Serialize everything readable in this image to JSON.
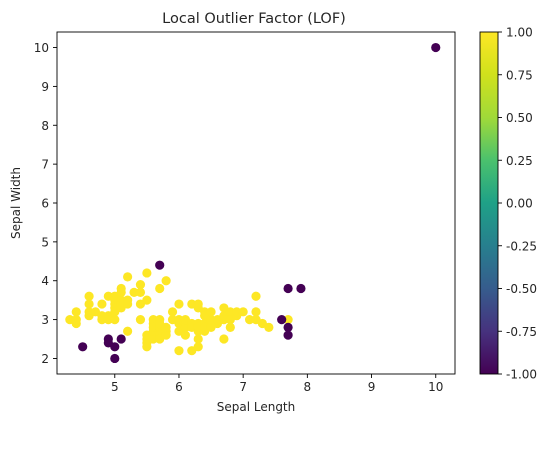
{
  "chart_data": {
    "type": "scatter",
    "title": "Local Outlier Factor (LOF)",
    "xlabel": "Sepal Length",
    "ylabel": "Sepal Width",
    "xlim": [
      4.1,
      10.3
    ],
    "ylim": [
      1.6,
      10.4
    ],
    "xticks": [
      "5",
      "6",
      "7",
      "8",
      "9",
      "10"
    ],
    "yticks": [
      "2",
      "3",
      "4",
      "5",
      "6",
      "7",
      "8",
      "9",
      "10"
    ],
    "grid": false,
    "legend": "none",
    "colorbar": {
      "colormap": "viridis",
      "range": [
        -1,
        1
      ],
      "ticks": [
        "-1.00",
        "-0.75",
        "-0.50",
        "-0.25",
        "0.00",
        "0.25",
        "0.50",
        "0.75",
        "1.00"
      ]
    },
    "colors": {
      "inlier": "#fde725",
      "outlier": "#440154"
    },
    "inliers": [
      [
        4.3,
        3.0
      ],
      [
        4.4,
        3.2
      ],
      [
        4.4,
        3.0
      ],
      [
        4.4,
        2.9
      ],
      [
        4.6,
        3.6
      ],
      [
        4.6,
        3.4
      ],
      [
        4.6,
        3.2
      ],
      [
        4.6,
        3.1
      ],
      [
        4.7,
        3.2
      ],
      [
        4.8,
        3.4
      ],
      [
        4.8,
        3.1
      ],
      [
        4.8,
        3.0
      ],
      [
        4.9,
        3.1
      ],
      [
        4.9,
        3.0
      ],
      [
        4.9,
        3.6
      ],
      [
        5.0,
        3.6
      ],
      [
        5.0,
        3.4
      ],
      [
        5.0,
        3.5
      ],
      [
        5.0,
        3.3
      ],
      [
        5.0,
        3.0
      ],
      [
        5.0,
        3.2
      ],
      [
        5.1,
        3.5
      ],
      [
        5.1,
        3.8
      ],
      [
        5.1,
        3.7
      ],
      [
        5.1,
        3.3
      ],
      [
        5.1,
        3.4
      ],
      [
        5.2,
        3.5
      ],
      [
        5.2,
        3.4
      ],
      [
        5.2,
        4.1
      ],
      [
        5.2,
        2.7
      ],
      [
        5.3,
        3.7
      ],
      [
        5.4,
        3.9
      ],
      [
        5.4,
        3.7
      ],
      [
        5.4,
        3.4
      ],
      [
        5.4,
        3.0
      ],
      [
        5.5,
        4.2
      ],
      [
        5.5,
        3.5
      ],
      [
        5.5,
        2.3
      ],
      [
        5.5,
        2.4
      ],
      [
        5.5,
        2.5
      ],
      [
        5.5,
        2.6
      ],
      [
        5.6,
        2.9
      ],
      [
        5.6,
        3.0
      ],
      [
        5.6,
        2.5
      ],
      [
        5.6,
        2.7
      ],
      [
        5.6,
        2.8
      ],
      [
        5.7,
        3.8
      ],
      [
        5.7,
        2.8
      ],
      [
        5.7,
        2.6
      ],
      [
        5.7,
        3.0
      ],
      [
        5.7,
        2.9
      ],
      [
        5.7,
        2.5
      ],
      [
        5.8,
        4.0
      ],
      [
        5.8,
        2.7
      ],
      [
        5.8,
        2.6
      ],
      [
        5.8,
        2.8
      ],
      [
        5.9,
        3.0
      ],
      [
        5.9,
        3.2
      ],
      [
        6.0,
        2.2
      ],
      [
        6.0,
        2.9
      ],
      [
        6.0,
        2.7
      ],
      [
        6.0,
        3.0
      ],
      [
        6.0,
        3.4
      ],
      [
        6.1,
        2.9
      ],
      [
        6.1,
        2.8
      ],
      [
        6.1,
        3.0
      ],
      [
        6.1,
        2.6
      ],
      [
        6.2,
        2.2
      ],
      [
        6.2,
        2.9
      ],
      [
        6.2,
        2.8
      ],
      [
        6.2,
        3.4
      ],
      [
        6.3,
        3.3
      ],
      [
        6.3,
        2.5
      ],
      [
        6.3,
        2.3
      ],
      [
        6.3,
        2.7
      ],
      [
        6.3,
        2.9
      ],
      [
        6.3,
        2.8
      ],
      [
        6.3,
        3.4
      ],
      [
        6.4,
        3.2
      ],
      [
        6.4,
        2.9
      ],
      [
        6.4,
        2.7
      ],
      [
        6.4,
        2.8
      ],
      [
        6.4,
        3.1
      ],
      [
        6.5,
        2.8
      ],
      [
        6.5,
        3.0
      ],
      [
        6.5,
        3.2
      ],
      [
        6.6,
        2.9
      ],
      [
        6.6,
        3.0
      ],
      [
        6.7,
        3.1
      ],
      [
        6.7,
        3.0
      ],
      [
        6.7,
        2.5
      ],
      [
        6.7,
        3.3
      ],
      [
        6.8,
        2.8
      ],
      [
        6.8,
        3.2
      ],
      [
        6.8,
        3.0
      ],
      [
        6.9,
        3.1
      ],
      [
        6.9,
        3.2
      ],
      [
        7.0,
        3.2
      ],
      [
        7.1,
        3.0
      ],
      [
        7.2,
        3.6
      ],
      [
        7.2,
        3.2
      ],
      [
        7.2,
        3.0
      ],
      [
        7.3,
        2.9
      ],
      [
        7.4,
        2.8
      ],
      [
        7.7,
        3.0
      ]
    ],
    "outliers": [
      [
        4.5,
        2.3
      ],
      [
        4.9,
        2.5
      ],
      [
        4.9,
        2.4
      ],
      [
        5.0,
        2.3
      ],
      [
        5.0,
        2.0
      ],
      [
        5.1,
        2.5
      ],
      [
        5.7,
        4.4
      ],
      [
        7.6,
        3.0
      ],
      [
        7.7,
        3.8
      ],
      [
        7.7,
        2.8
      ],
      [
        7.7,
        2.6
      ],
      [
        7.9,
        3.8
      ],
      [
        10.0,
        10.0
      ]
    ]
  }
}
